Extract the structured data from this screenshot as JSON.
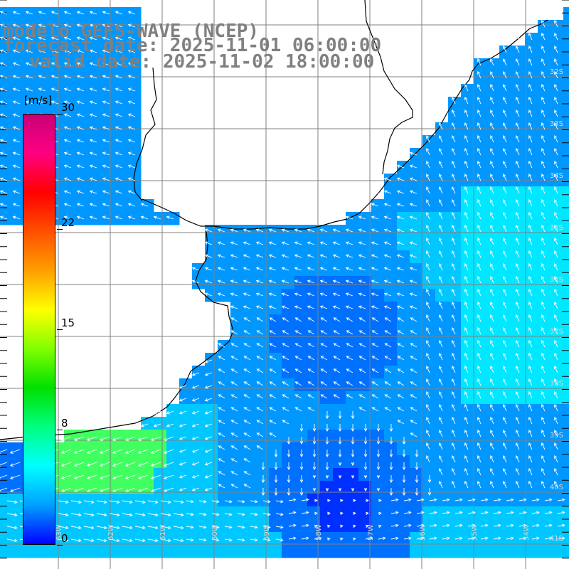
{
  "title": {
    "model_line": "modelo GEFS-WAVE (NCEP)",
    "forecast_line": "forecast date: 2025-11-01 06:00:00",
    "valid_line": "valid date: 2025-11-02 18:00:00"
  },
  "colorbar": {
    "unit": "[m/s]",
    "ticks": [
      "30",
      "22",
      "15",
      "8",
      "0"
    ],
    "tick_values": [
      30,
      22,
      15,
      8,
      0
    ],
    "range": [
      0,
      30
    ],
    "colors": [
      "#0000ff",
      "#00a0ff",
      "#00ffff",
      "#00ff80",
      "#00e000",
      "#80ff00",
      "#ffff00",
      "#ffa000",
      "#ff5000",
      "#ff0000",
      "#ff0080",
      "#c80078"
    ]
  },
  "map": {
    "lat_labels": [
      "32S",
      "33S",
      "34S",
      "35S",
      "36S",
      "37S",
      "38S",
      "39S",
      "40S",
      "41S"
    ],
    "lon_labels": [
      "63W",
      "62W",
      "61W",
      "60W",
      "59W",
      "58W",
      "57W",
      "56W",
      "55W",
      "54W"
    ],
    "field_colors": {
      "land": "#ffffff",
      "deep_blue": "#0030ff",
      "mid_blue": "#0070ff",
      "light_blue": "#0098ff",
      "cyan": "#00c8ff",
      "aqua": "#00e8ff",
      "green": "#40ff60"
    }
  }
}
